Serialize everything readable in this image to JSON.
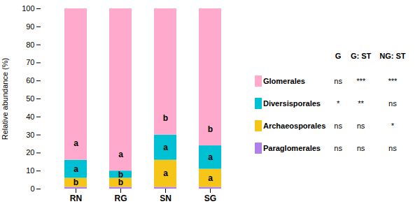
{
  "chart_data": {
    "type": "bar",
    "stacked": true,
    "categories": [
      "RN",
      "RG",
      "SN",
      "SG"
    ],
    "series": [
      {
        "name": "Paraglomerales",
        "color": "#b07fe8",
        "values": [
          1.0,
          1.0,
          1.0,
          1.0
        ]
      },
      {
        "name": "Archaeosporales",
        "color": "#f5c518",
        "values": [
          5.0,
          5.0,
          15.0,
          10.0
        ],
        "annotations": [
          "b",
          "b",
          "a",
          "a"
        ]
      },
      {
        "name": "Diversisporales",
        "color": "#00c0d4",
        "values": [
          10.0,
          4.0,
          14.0,
          13.0
        ],
        "annotations": [
          "a",
          "b",
          "a",
          "a"
        ]
      },
      {
        "name": "Glomerales",
        "color": "#ffaacc",
        "values": [
          84.0,
          90.0,
          70.0,
          76.0
        ],
        "annotations": [
          "a",
          "a",
          "b",
          "b"
        ]
      }
    ],
    "ylabel": "Relative abundance (%)",
    "ylim": [
      0,
      100
    ],
    "yticks": [
      0,
      10,
      20,
      30,
      40,
      50,
      60,
      70,
      80,
      90,
      100
    ],
    "table": {
      "headers": [
        "G",
        "G: ST",
        "NG: ST"
      ],
      "rows": [
        [
          "Glomerales",
          "ns",
          "***",
          "***"
        ],
        [
          "Diversisporales",
          "*",
          "**",
          "ns"
        ],
        [
          "Archaeosporales",
          "ns",
          "ns",
          "*"
        ],
        [
          "Paraglomerales",
          "ns",
          "ns",
          "ns"
        ]
      ]
    }
  }
}
